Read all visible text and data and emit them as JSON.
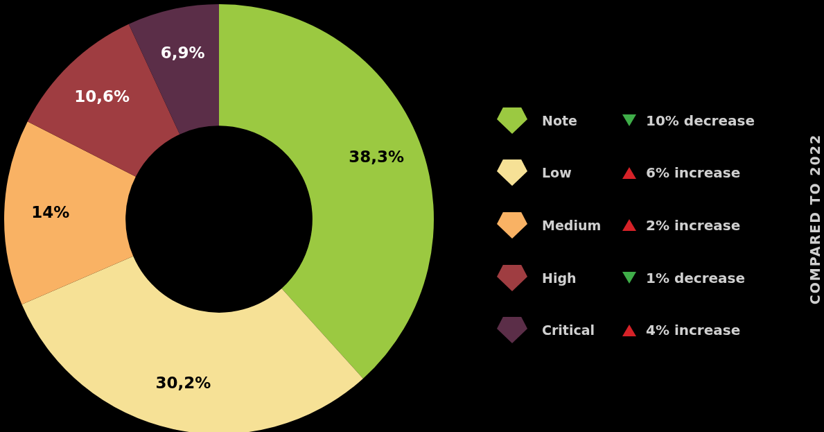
{
  "chart_data": {
    "type": "donut",
    "categories": [
      "Note",
      "Low",
      "Medium",
      "High",
      "Critical"
    ],
    "values": [
      38.3,
      30.2,
      14,
      10.6,
      6.9
    ],
    "colors": [
      "#9bc941",
      "#f6e196",
      "#f9b264",
      "#9f3d41",
      "#5b2e48"
    ],
    "value_labels": [
      "38,3%",
      "30,2%",
      "14%",
      "10,6%",
      "6,9%"
    ],
    "legend": "right",
    "annotations": [
      "10% decrease",
      "6% increase",
      "2% increase",
      "1% decrease",
      "4% increase",
      "COMPARED TO 2022"
    ]
  }
}
